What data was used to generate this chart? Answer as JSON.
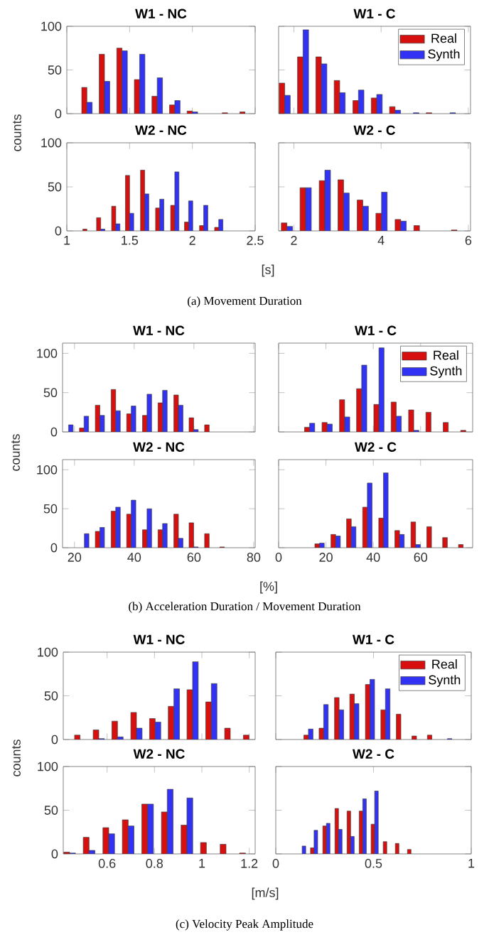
{
  "chart_data": [
    {
      "type": "bar",
      "title": "W1 - NC",
      "x": [
        1.16,
        1.3,
        1.44,
        1.58,
        1.72,
        1.86,
        2.0,
        2.14,
        2.28,
        2.42
      ],
      "xlim": [
        1,
        2.5
      ],
      "xticks": [
        1,
        1.5,
        2,
        2.5
      ],
      "ylim": [
        0,
        100
      ],
      "yticks": [
        0,
        50,
        100
      ],
      "tick_labels": "y",
      "series": [
        {
          "color": "#d70f0f",
          "values": [
            30,
            68,
            75,
            39,
            20,
            10,
            3,
            0,
            1,
            2
          ]
        },
        {
          "color": "#3232f5",
          "values": [
            13,
            37,
            72,
            68,
            41,
            15,
            2,
            0,
            0,
            0
          ]
        }
      ]
    },
    {
      "type": "bar",
      "title": "W1 - C",
      "x": [
        1.79,
        2.21,
        2.63,
        3.05,
        3.48,
        3.9,
        4.32,
        4.74,
        5.16,
        5.58
      ],
      "xlim": [
        1.65,
        6.05
      ],
      "xticks": [
        2,
        4,
        6
      ],
      "ylim": [
        0,
        100
      ],
      "yticks": [
        0,
        50,
        100
      ],
      "tick_labels": false,
      "legend": "top right",
      "series": [
        {
          "name": "Real",
          "color": "#d70f0f",
          "values": [
            35,
            65,
            65,
            38,
            15,
            18,
            8,
            0,
            1,
            0
          ]
        },
        {
          "name": "Synth",
          "color": "#3232f5",
          "values": [
            21,
            96,
            57,
            24,
            27,
            22,
            4,
            1,
            0,
            1
          ]
        }
      ]
    },
    {
      "type": "bar",
      "title": "W2 - NC",
      "x": [
        1.16,
        1.27,
        1.39,
        1.5,
        1.62,
        1.74,
        1.86,
        1.97,
        2.09,
        2.21
      ],
      "xlim": [
        1,
        2.5
      ],
      "xticks": [
        1,
        1.5,
        2,
        2.5
      ],
      "ylim": [
        0,
        100
      ],
      "yticks": [
        0,
        50,
        100
      ],
      "ylabel": "counts",
      "xlabel": "[s]",
      "annotations": [
        "(a) Movement Duration"
      ],
      "series": [
        {
          "color": "#d70f0f",
          "values": [
            2,
            15,
            28,
            63,
            69,
            26,
            29,
            10,
            6,
            4
          ]
        },
        {
          "color": "#3232f5",
          "values": [
            0,
            2,
            8,
            20,
            42,
            36,
            67,
            34,
            29,
            13
          ]
        }
      ]
    },
    {
      "type": "bar",
      "title": "W2 - C",
      "x": [
        1.84,
        2.27,
        2.71,
        3.14,
        3.58,
        4.01,
        4.45,
        4.88,
        5.31,
        5.74
      ],
      "xlim": [
        1.65,
        6.05
      ],
      "xticks": [
        2,
        4,
        6
      ],
      "ylim": [
        0,
        100
      ],
      "yticks": [
        0,
        50,
        100
      ],
      "tick_labels": "x",
      "series": [
        {
          "color": "#d70f0f",
          "values": [
            9,
            49,
            57,
            58,
            35,
            20,
            13,
            6,
            0,
            1
          ]
        },
        {
          "color": "#3232f5",
          "values": [
            5,
            49,
            69,
            43,
            28,
            44,
            11,
            0,
            0,
            0
          ]
        }
      ]
    },
    {
      "type": "bar",
      "title": "W1 - NC",
      "x": [
        18.0,
        23.2,
        28.5,
        33.8,
        39.0,
        44.3,
        49.5,
        54.8,
        59.9,
        65.1
      ],
      "xlim": [
        16,
        80.5
      ],
      "xticks": [
        20,
        40,
        60,
        80
      ],
      "ylim": [
        0,
        113
      ],
      "yticks": [
        0,
        50,
        100
      ],
      "tick_labels": "y",
      "series": [
        {
          "color": "#d70f0f",
          "values": [
            0,
            5,
            34,
            54,
            23,
            21,
            37,
            47,
            18,
            9
          ]
        },
        {
          "color": "#3232f5",
          "values": [
            9,
            20,
            21,
            27,
            33,
            48,
            53,
            34,
            3,
            0
          ]
        }
      ]
    },
    {
      "type": "bar",
      "title": "W1 - C",
      "x": [
        13.1,
        20.5,
        27.9,
        35.1,
        42.4,
        49.7,
        57.1,
        64.4,
        71.7,
        79.1
      ],
      "xlim": [
        0,
        82
      ],
      "xticks": [
        0,
        20,
        40,
        60
      ],
      "ylim": [
        0,
        113
      ],
      "yticks": [
        0,
        50,
        100
      ],
      "tick_labels": false,
      "legend": "top right",
      "series": [
        {
          "name": "Real",
          "color": "#d70f0f",
          "values": [
            6,
            12,
            41,
            55,
            35,
            38,
            28,
            25,
            12,
            2
          ]
        },
        {
          "name": "Synth",
          "color": "#3232f5",
          "values": [
            11,
            10,
            19,
            85,
            107,
            20,
            2,
            0,
            0,
            0
          ]
        }
      ]
    },
    {
      "type": "bar",
      "title": "W2 - NC",
      "x": [
        23.3,
        28.5,
        33.8,
        39.0,
        44.3,
        49.5,
        54.8,
        59.9,
        65.1,
        70.2
      ],
      "xlim": [
        16,
        80.5
      ],
      "xticks": [
        20,
        40,
        60,
        80
      ],
      "ylim": [
        0,
        113
      ],
      "yticks": [
        0,
        50,
        100
      ],
      "ylabel": "counts",
      "xlabel": "[%]",
      "annotations": [
        "(b) Acceleration Duration / Movement Duration"
      ],
      "series": [
        {
          "color": "#d70f0f",
          "values": [
            0,
            21,
            47,
            43,
            23,
            23,
            43,
            32,
            18,
            1
          ]
        },
        {
          "color": "#3232f5",
          "values": [
            18,
            26,
            52,
            61,
            50,
            31,
            12,
            1,
            0,
            0
          ]
        }
      ]
    },
    {
      "type": "bar",
      "title": "W2 - C",
      "x": [
        17.3,
        24.1,
        30.7,
        37.5,
        44.3,
        51.1,
        57.9,
        64.6,
        71.3,
        78.0
      ],
      "xlim": [
        0,
        82
      ],
      "xticks": [
        0,
        20,
        40,
        60
      ],
      "ylim": [
        0,
        113
      ],
      "yticks": [
        0,
        50,
        100
      ],
      "tick_labels": "x",
      "series": [
        {
          "color": "#d70f0f",
          "values": [
            5,
            17,
            37,
            52,
            38,
            22,
            33,
            27,
            13,
            4
          ]
        },
        {
          "color": "#3232f5",
          "values": [
            6,
            15,
            27,
            83,
            96,
            17,
            4,
            0,
            0,
            0
          ]
        }
      ]
    },
    {
      "type": "bar",
      "title": "W1 - NC",
      "x": [
        0.486,
        0.565,
        0.644,
        0.724,
        0.803,
        0.882,
        0.961,
        1.04,
        1.12,
        1.199
      ],
      "xlim": [
        0.415,
        1.225
      ],
      "xticks": [
        0.6,
        0.8,
        1,
        1.2
      ],
      "ylim": [
        0,
        100
      ],
      "yticks": [
        0,
        50,
        100
      ],
      "tick_labels": "y",
      "series": [
        {
          "color": "#d70f0f",
          "values": [
            5,
            11,
            21,
            31,
            24,
            38,
            57,
            43,
            13,
            5
          ]
        },
        {
          "color": "#3232f5",
          "values": [
            0,
            1,
            3,
            13,
            20,
            58,
            89,
            64,
            0,
            0
          ]
        }
      ]
    },
    {
      "type": "bar",
      "title": "W1 - C",
      "x": [
        0.167,
        0.245,
        0.324,
        0.402,
        0.482,
        0.561,
        0.64,
        0.72,
        0.799,
        0.878
      ],
      "xlim": [
        0,
        1
      ],
      "xticks": [
        0,
        0.5,
        1
      ],
      "ylim": [
        0,
        100
      ],
      "yticks": [
        0,
        50,
        100
      ],
      "tick_labels": false,
      "legend": "top right",
      "series": [
        {
          "name": "Real",
          "color": "#d70f0f",
          "values": [
            5,
            13,
            48,
            52,
            63,
            34,
            29,
            4,
            5,
            0
          ]
        },
        {
          "name": "Synth",
          "color": "#3232f5",
          "values": [
            12,
            40,
            34,
            41,
            69,
            58,
            0,
            0,
            0,
            1
          ]
        }
      ]
    },
    {
      "type": "bar",
      "title": "W2 - NC",
      "x": [
        0.442,
        0.524,
        0.607,
        0.689,
        0.771,
        0.854,
        0.937,
        1.019,
        1.102,
        1.184
      ],
      "xlim": [
        0.415,
        1.225
      ],
      "xticks": [
        0.6,
        0.8,
        1,
        1.2
      ],
      "ylim": [
        0,
        100
      ],
      "yticks": [
        0,
        50,
        100
      ],
      "ylabel": "counts",
      "xlabel": "[m/s]",
      "annotations": [
        "(c) Velocity Peak Amplitude"
      ],
      "series": [
        {
          "color": "#d70f0f",
          "values": [
            2,
            19,
            30,
            39,
            57,
            48,
            33,
            13,
            11,
            1
          ]
        },
        {
          "color": "#3232f5",
          "values": [
            1,
            4,
            23,
            32,
            57,
            74,
            64,
            0,
            0,
            0
          ]
        }
      ]
    },
    {
      "type": "bar",
      "title": "W2 - C",
      "x": [
        0.135,
        0.196,
        0.259,
        0.321,
        0.383,
        0.445,
        0.506,
        0.568,
        0.63,
        0.692
      ],
      "xlim": [
        0,
        1
      ],
      "xticks": [
        0,
        0.5,
        1
      ],
      "ylim": [
        0,
        100
      ],
      "yticks": [
        0,
        50,
        100
      ],
      "tick_labels": "x",
      "series": [
        {
          "color": "#d70f0f",
          "values": [
            0,
            7,
            32,
            52,
            49,
            49,
            34,
            14,
            12,
            5
          ]
        },
        {
          "color": "#3232f5",
          "values": [
            9,
            27,
            35,
            28,
            20,
            63,
            72,
            0,
            0,
            0
          ]
        }
      ]
    }
  ]
}
